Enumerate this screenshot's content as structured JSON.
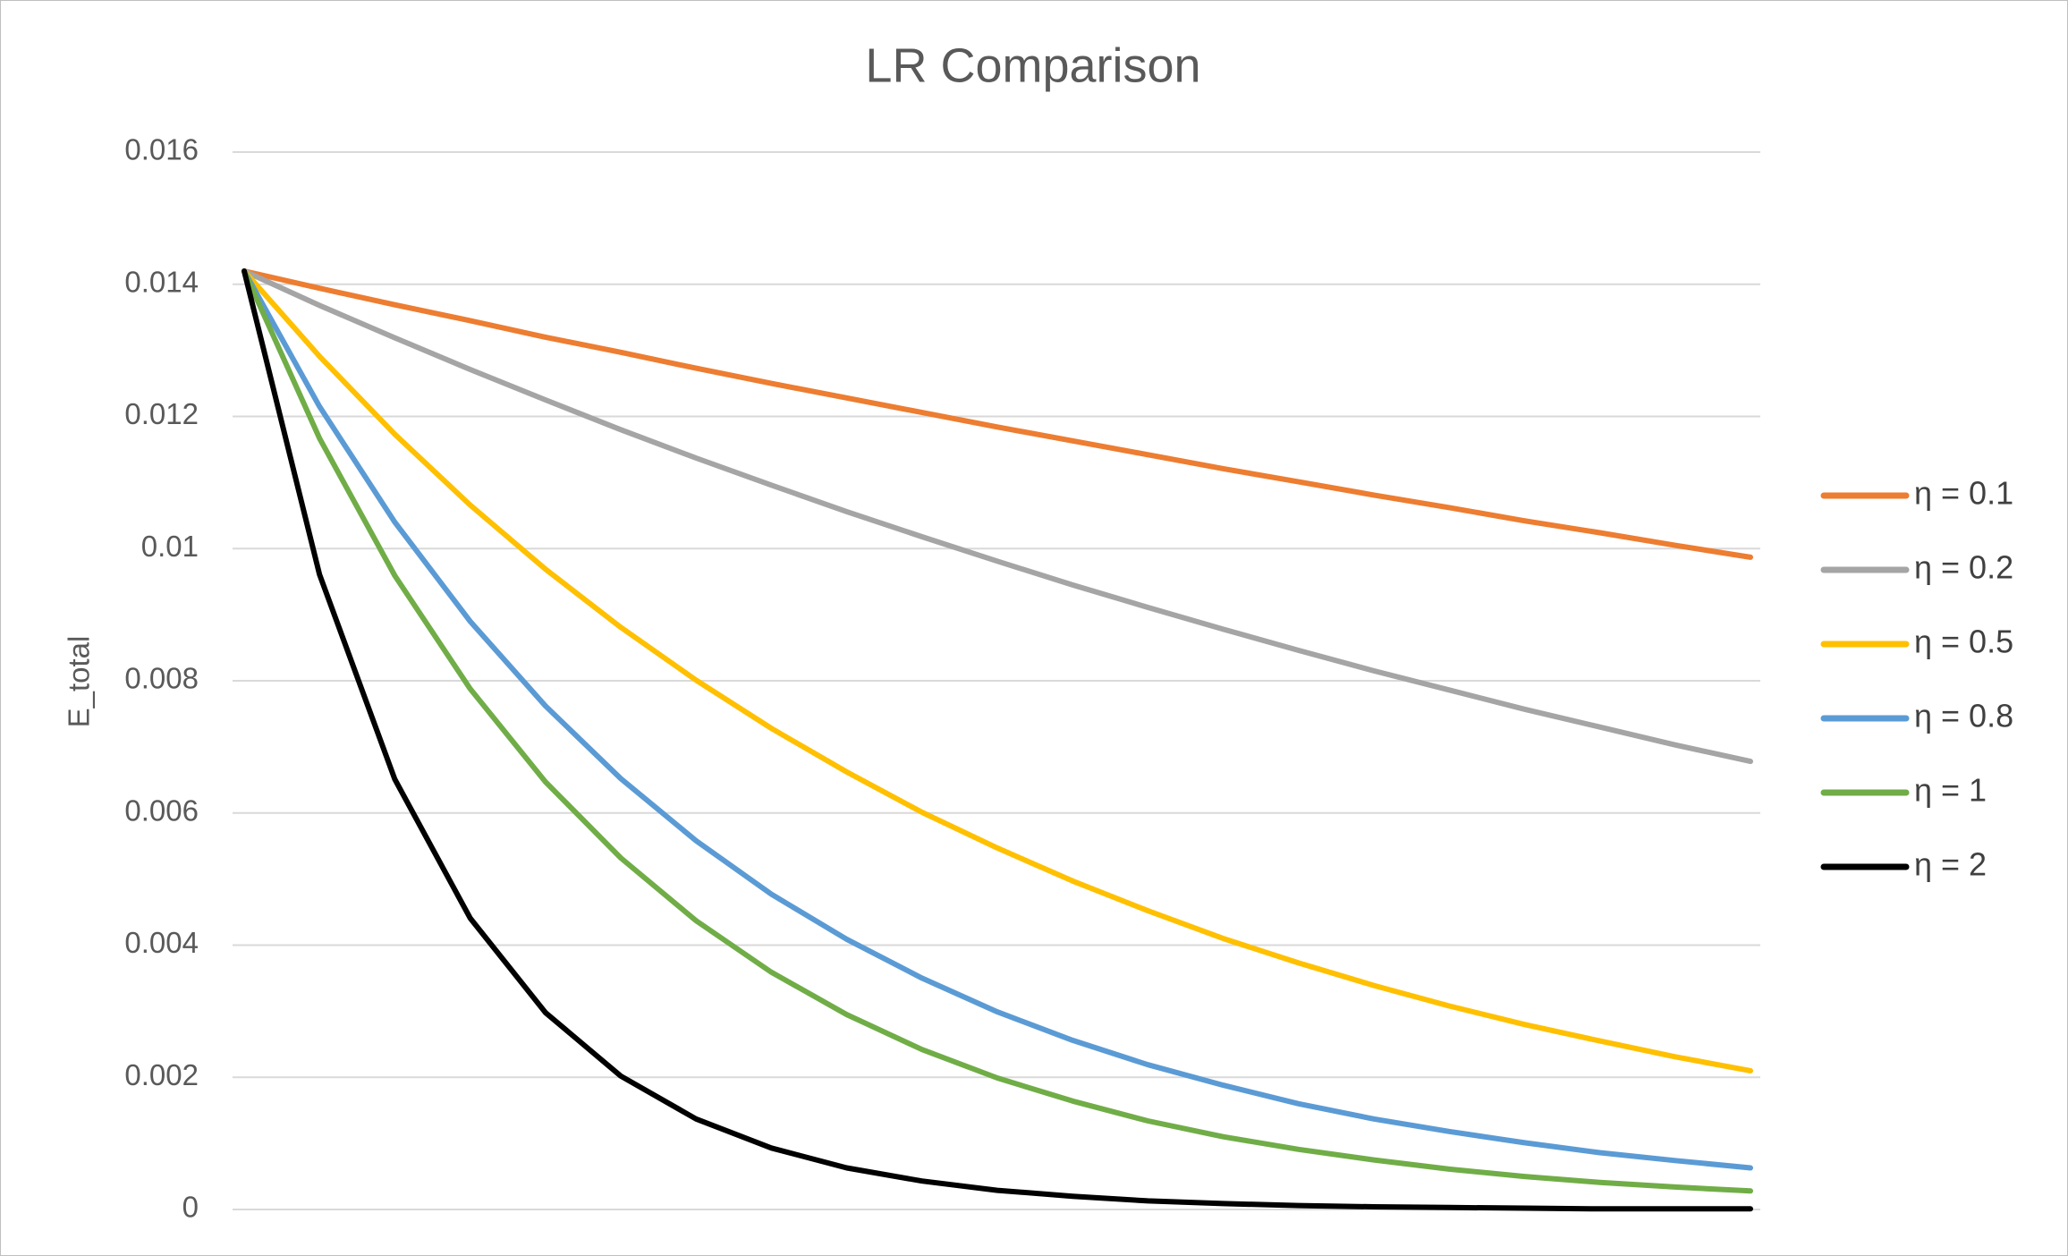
{
  "chart_data": {
    "type": "line",
    "title": "LR Comparison",
    "y_label": "E_total",
    "categories": [
      null,
      null,
      null,
      null,
      null,
      null,
      null,
      null,
      null,
      null,
      null,
      null,
      null,
      null,
      null,
      null,
      null,
      null,
      null,
      null,
      null
    ],
    "series": [
      {
        "name": "η = 0.1",
        "color": "#ED7D31",
        "values": [
          0.0142,
          0.01394,
          0.01369,
          0.01345,
          0.0132,
          0.01297,
          0.01273,
          0.0125,
          0.01228,
          0.01206,
          0.01184,
          0.01163,
          0.01142,
          0.01121,
          0.01101,
          0.01081,
          0.01062,
          0.01042,
          0.01024,
          0.01005,
          0.00987
        ]
      },
      {
        "name": "η = 0.2",
        "color": "#A5A5A5",
        "values": [
          0.0142,
          0.01368,
          0.01319,
          0.01271,
          0.01225,
          0.0118,
          0.01137,
          0.01096,
          0.01056,
          0.01018,
          0.00981,
          0.00945,
          0.00911,
          0.00878,
          0.00846,
          0.00815,
          0.00786,
          0.00757,
          0.0073,
          0.00703,
          0.00678
        ]
      },
      {
        "name": "η = 0.5",
        "color": "#FFC000",
        "values": [
          0.0142,
          0.01291,
          0.01173,
          0.01066,
          0.00969,
          0.00881,
          0.00801,
          0.00728,
          0.00662,
          0.00601,
          0.00547,
          0.00497,
          0.00452,
          0.0041,
          0.00373,
          0.00339,
          0.00308,
          0.0028,
          0.00255,
          0.00231,
          0.0021
        ]
      },
      {
        "name": "η = 0.8",
        "color": "#5B9BD5",
        "values": [
          0.0142,
          0.01215,
          0.0104,
          0.0089,
          0.00762,
          0.00652,
          0.00558,
          0.00477,
          0.00409,
          0.0035,
          0.00299,
          0.00256,
          0.00219,
          0.00188,
          0.0016,
          0.00137,
          0.00118,
          0.00101,
          0.00086,
          0.00074,
          0.00063
        ]
      },
      {
        "name": "η = 1",
        "color": "#70AD47",
        "values": [
          0.0142,
          0.01167,
          0.00959,
          0.00788,
          0.00647,
          0.00532,
          0.00437,
          0.00359,
          0.00295,
          0.00242,
          0.00199,
          0.00164,
          0.00134,
          0.0011,
          0.00091,
          0.00075,
          0.00061,
          0.0005,
          0.00041,
          0.00034,
          0.00028
        ]
      },
      {
        "name": "η = 2",
        "color": "#000000",
        "values": [
          0.0142,
          0.00961,
          0.00651,
          0.00441,
          0.00298,
          0.00202,
          0.00137,
          0.00093,
          0.00063,
          0.00043,
          0.00029,
          0.0002,
          0.00013,
          9e-05,
          6e-05,
          4e-05,
          3e-05,
          2e-05,
          1e-05,
          1e-05,
          1e-05
        ]
      }
    ],
    "ylim": [
      0,
      0.016
    ],
    "yticks": [
      0,
      0.002,
      0.004,
      0.006,
      0.008,
      0.01,
      0.012,
      0.014,
      0.016
    ],
    "grid": true,
    "legend": "right"
  }
}
